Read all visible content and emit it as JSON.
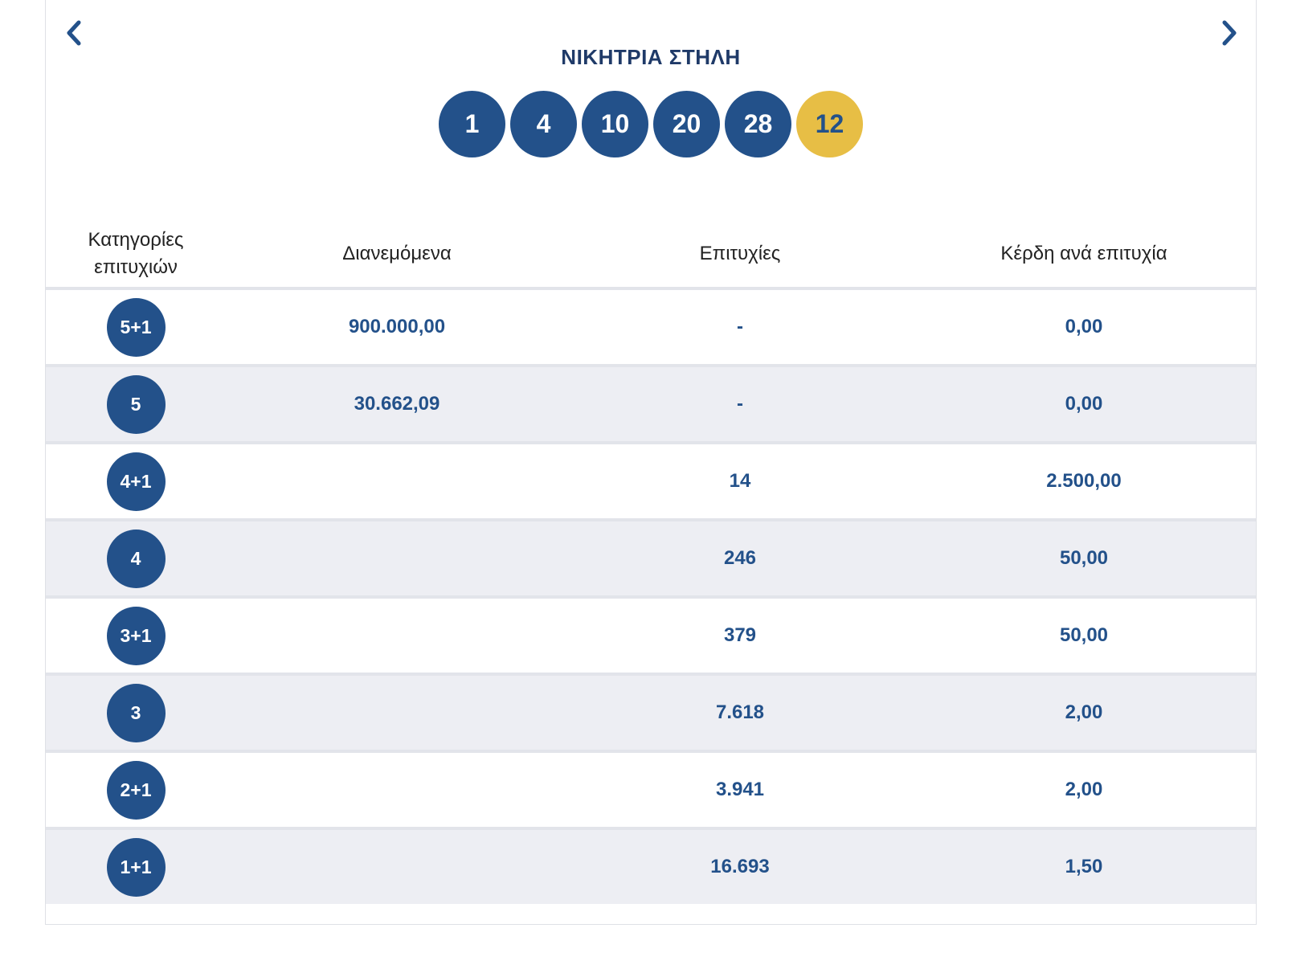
{
  "title": "ΝΙΚΗΤΡΙΑ ΣΤΗΛΗ",
  "winning_numbers": [
    "1",
    "4",
    "10",
    "20",
    "28"
  ],
  "bonus_number": "12",
  "table": {
    "headers": {
      "category_line1": "Κατηγορίες",
      "category_line2": "επιτυχιών",
      "distributed": "Διανεμόμενα",
      "winners": "Επιτυχίες",
      "prize_per_winner": "Κέρδη ανά επιτυχία"
    },
    "rows": [
      {
        "category": "5+1",
        "distributed": "900.000,00",
        "winners": "-",
        "prize": "0,00"
      },
      {
        "category": "5",
        "distributed": "30.662,09",
        "winners": "-",
        "prize": "0,00"
      },
      {
        "category": "4+1",
        "distributed": "",
        "winners": "14",
        "prize": "2.500,00"
      },
      {
        "category": "4",
        "distributed": "",
        "winners": "246",
        "prize": "50,00"
      },
      {
        "category": "3+1",
        "distributed": "",
        "winners": "379",
        "prize": "50,00"
      },
      {
        "category": "3",
        "distributed": "",
        "winners": "7.618",
        "prize": "2,00"
      },
      {
        "category": "2+1",
        "distributed": "",
        "winners": "3.941",
        "prize": "2,00"
      },
      {
        "category": "1+1",
        "distributed": "",
        "winners": "16.693",
        "prize": "1,50"
      }
    ]
  },
  "icons": {
    "prev": "chevron-left-icon",
    "next": "chevron-right-icon"
  },
  "colors": {
    "primary": "#23518a",
    "bonus": "#e7be45",
    "row_alt": "#edeef3"
  }
}
